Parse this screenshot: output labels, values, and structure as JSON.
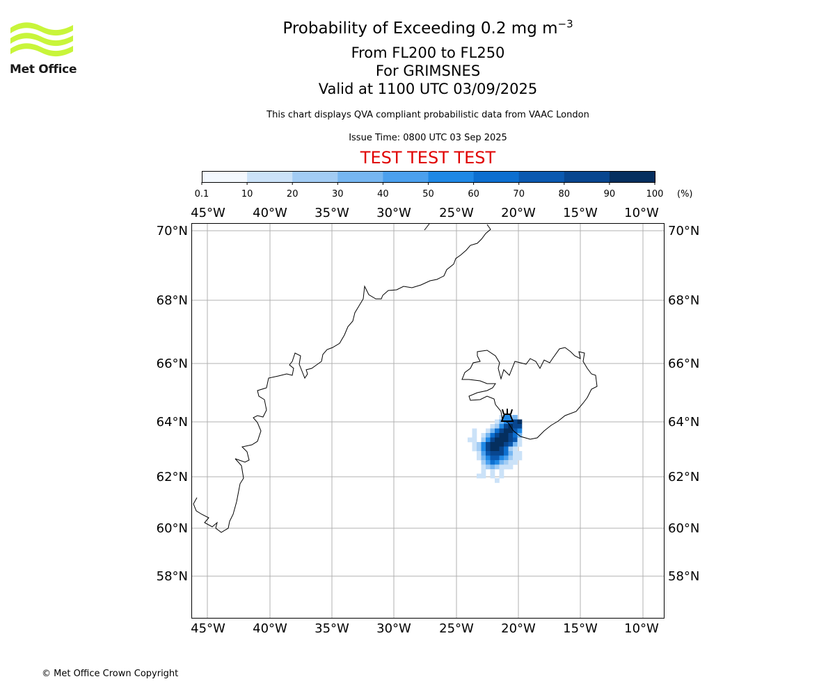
{
  "title": {
    "main": "Probability of Exceeding 0.2 mg m",
    "main_sup": "−3",
    "line2": "From FL200 to FL250",
    "line3": "For GRIMSNES",
    "line4": "Valid at 1100 UTC 03/09/2025"
  },
  "caption": "This chart displays QVA compliant probabilistic data from VAAC London",
  "issue_time": "Issue Time: 0800 UTC 03 Sep 2025",
  "test_banner": "TEST TEST TEST",
  "copyright": "© Met Office Crown Copyright",
  "logo": {
    "text": "Met Office",
    "color": "#c8f53a"
  },
  "colorbar": {
    "ticks": [
      "0.1",
      "10",
      "20",
      "30",
      "40",
      "50",
      "60",
      "70",
      "80",
      "90",
      "100"
    ],
    "unit": "(%)",
    "colors": [
      "#f3f8fe",
      "#cbe2f8",
      "#a2ccf4",
      "#76b6f1",
      "#4ba0ee",
      "#1f88e5",
      "#0d6fd0",
      "#0b59b0",
      "#08468f",
      "#052f5f"
    ]
  },
  "map": {
    "lon_labels": [
      "45°W",
      "40°W",
      "35°W",
      "30°W",
      "25°W",
      "20°W",
      "15°W",
      "10°W"
    ],
    "lat_labels": [
      "70°N",
      "68°N",
      "66°N",
      "64°N",
      "62°N",
      "60°N",
      "58°N"
    ],
    "volcano": "GRIMSNES",
    "gridlines": true
  }
}
